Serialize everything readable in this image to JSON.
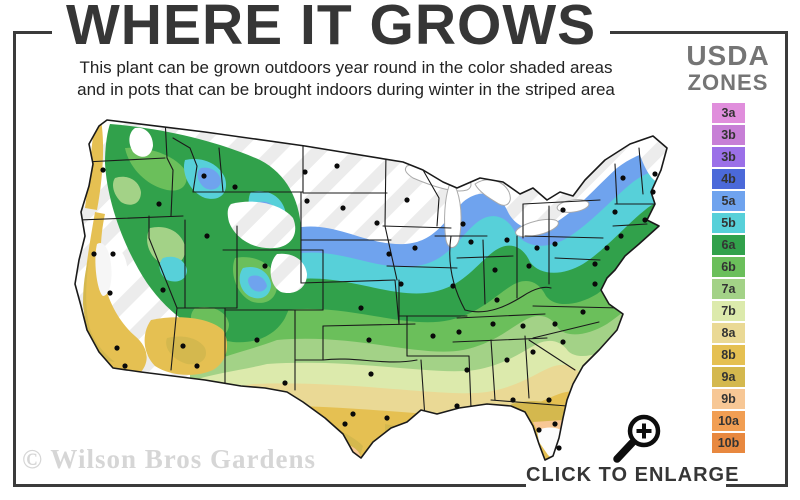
{
  "header": {
    "title": "WHERE IT GROWS",
    "subtitle_line1": "This plant can be grown outdoors year round in the color shaded areas",
    "subtitle_line2": "and in pots that can be brought indoors during winter in the striped area"
  },
  "legend": {
    "heading_line1": "USDA",
    "heading_line2": "ZONES",
    "zones": [
      {
        "label": "3a",
        "color": "#e08edc"
      },
      {
        "label": "3b",
        "color": "#c77fd6"
      },
      {
        "label": "3b",
        "color": "#9b70e8"
      },
      {
        "label": "4b",
        "color": "#4b69d9"
      },
      {
        "label": "5a",
        "color": "#6fa3ee"
      },
      {
        "label": "5b",
        "color": "#57d0d9"
      },
      {
        "label": "6a",
        "color": "#31a14b"
      },
      {
        "label": "6b",
        "color": "#6bbf5b"
      },
      {
        "label": "7a",
        "color": "#a3d287"
      },
      {
        "label": "7b",
        "color": "#dceaac"
      },
      {
        "label": "8a",
        "color": "#ead995"
      },
      {
        "label": "8b",
        "color": "#e5c052"
      },
      {
        "label": "9a",
        "color": "#d4b84e"
      },
      {
        "label": "9b",
        "color": "#f7c795"
      },
      {
        "label": "10a",
        "color": "#f19e53"
      },
      {
        "label": "10b",
        "color": "#e8883f"
      }
    ]
  },
  "map": {
    "watermark": "© Wilson Bros Gardens"
  },
  "footer": {
    "enlarge_label": "CLICK TO ENLARGE"
  },
  "colors": {
    "frame": "#3b3b3b",
    "title_text": "#363636",
    "legend_heading": "#757575",
    "watermark": "#d6d6d6",
    "striped_area": "#ededed"
  }
}
